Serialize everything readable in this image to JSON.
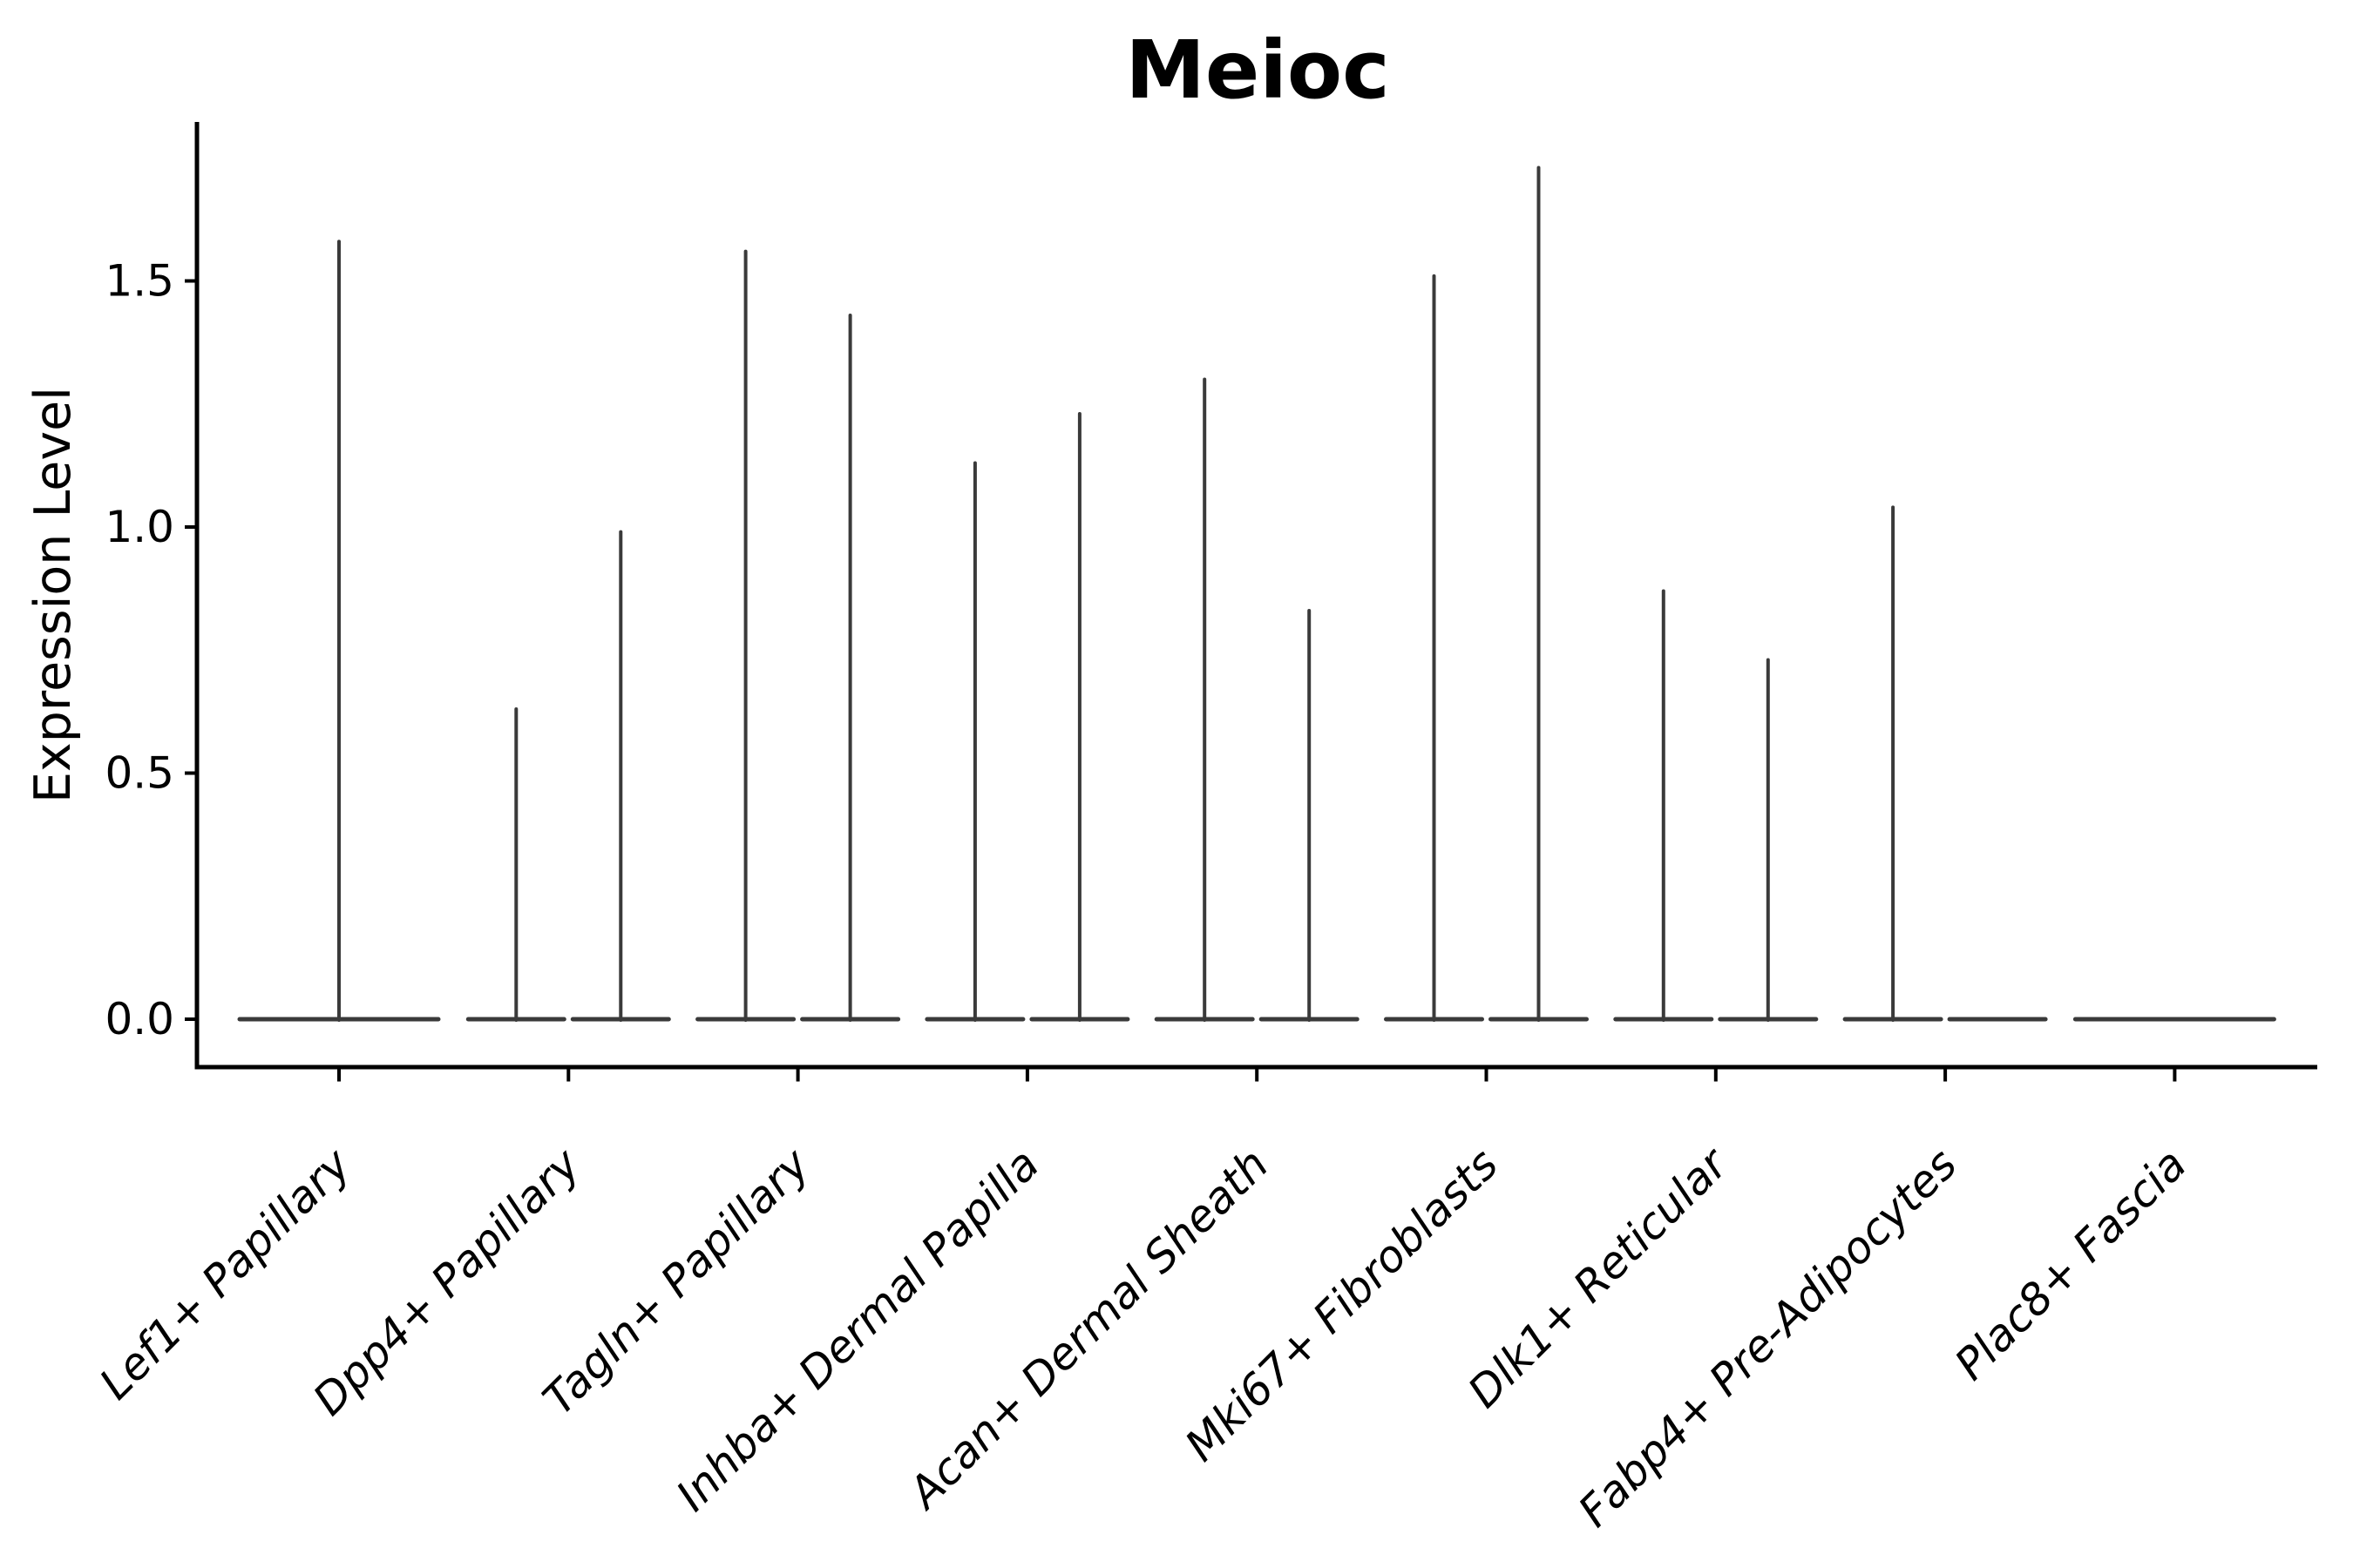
{
  "chart_data": {
    "type": "violin",
    "title": "Meioc",
    "ylabel": "Expression Level",
    "xlabel": "",
    "ytick_labels": [
      "0.0",
      "0.5",
      "1.0",
      "1.5"
    ],
    "ytick_values": [
      0.0,
      0.5,
      1.0,
      1.5
    ],
    "ylim": [
      -0.1,
      1.83
    ],
    "grid": "off",
    "legend": "none",
    "violin_outline_color": "#3a3a3a",
    "axis_color": "#000000",
    "background_color": "#ffffff",
    "categories": [
      "Lef1+ Papillary",
      "Dpp4+ Papillary",
      "Tagln+ Papillary",
      "Inhba+ Dermal Papilla",
      "Acan+ Dermal Sheath",
      "Mki67+ Fibroblasts",
      "Dlk1+ Reticular",
      "Fabp4+ Pre-Adipocytes",
      "Plac8+ Fascia"
    ],
    "violins": [
      {
        "category": "Lef1+ Papillary",
        "groups": [
          {
            "position": "center",
            "max_expression": 1.58
          }
        ]
      },
      {
        "category": "Dpp4+ Papillary",
        "groups": [
          {
            "position": "left",
            "max_expression": 0.63
          },
          {
            "position": "right",
            "max_expression": 0.99
          }
        ]
      },
      {
        "category": "Tagln+ Papillary",
        "groups": [
          {
            "position": "left",
            "max_expression": 1.56
          },
          {
            "position": "right",
            "max_expression": 1.43
          }
        ]
      },
      {
        "category": "Inhba+ Dermal Papilla",
        "groups": [
          {
            "position": "left",
            "max_expression": 1.13
          },
          {
            "position": "right",
            "max_expression": 1.23
          }
        ]
      },
      {
        "category": "Acan+ Dermal Sheath",
        "groups": [
          {
            "position": "left",
            "max_expression": 1.3
          },
          {
            "position": "right",
            "max_expression": 0.83
          }
        ]
      },
      {
        "category": "Mki67+ Fibroblasts",
        "groups": [
          {
            "position": "left",
            "max_expression": 1.51
          },
          {
            "position": "right",
            "max_expression": 1.73
          }
        ]
      },
      {
        "category": "Dlk1+ Reticular",
        "groups": [
          {
            "position": "left",
            "max_expression": 0.87
          },
          {
            "position": "right",
            "max_expression": 0.73
          }
        ]
      },
      {
        "category": "Fabp4+ Pre-Adipocytes",
        "groups": [
          {
            "position": "left",
            "max_expression": 1.04
          },
          {
            "position": "right",
            "max_expression": 0.0
          }
        ]
      },
      {
        "category": "Plac8+ Fascia",
        "groups": [
          {
            "position": "center",
            "max_expression": 0.0
          }
        ]
      }
    ]
  }
}
